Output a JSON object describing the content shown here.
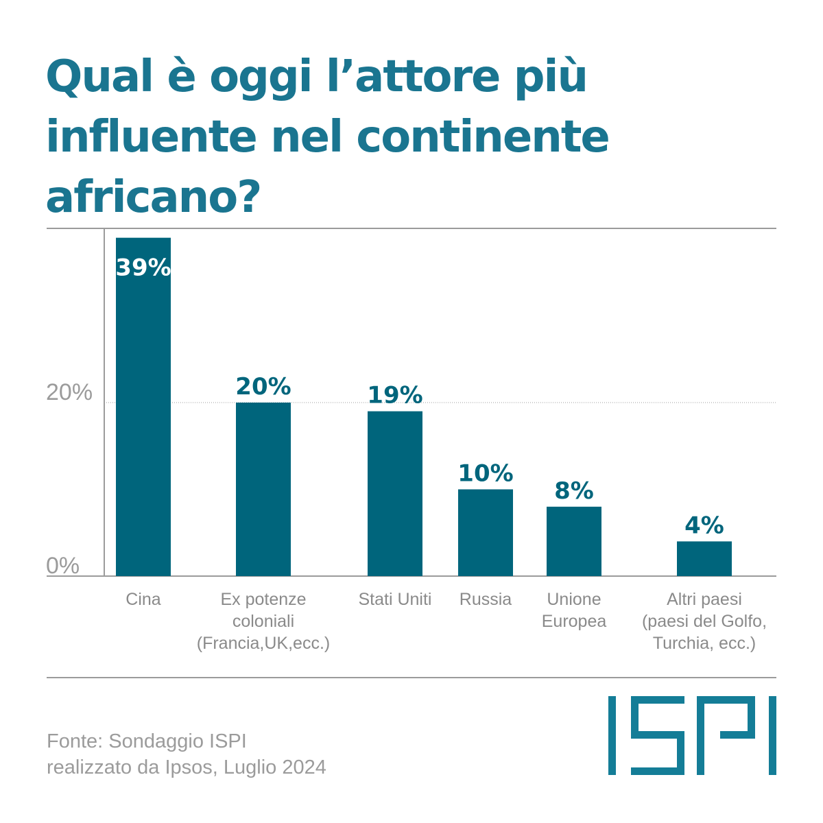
{
  "title_lines": [
    "Qual è oggi l’attore più",
    "influente nel continente",
    "africano?"
  ],
  "chart_data": {
    "type": "bar",
    "title": "Qual è oggi l’attore più influente nel continente africano?",
    "categories": [
      [
        "Cina"
      ],
      [
        "Ex potenze",
        "coloniali",
        "(Francia,UK,ecc.)"
      ],
      [
        "Stati Uniti"
      ],
      [
        "Russia"
      ],
      [
        "Unione",
        "Europea"
      ],
      [
        "Altri paesi",
        "(paesi del Golfo,",
        "Turchia, ecc.)"
      ]
    ],
    "values": [
      39,
      20,
      19,
      10,
      8,
      4
    ],
    "data_labels": [
      "39%",
      "20%",
      "19%",
      "10%",
      "8%",
      "4%"
    ],
    "y_ticks": [
      {
        "value": 0,
        "label": "0%"
      },
      {
        "value": 20,
        "label": "20%"
      }
    ],
    "ylim": [
      0,
      40
    ],
    "grid": "dotted line at 20%",
    "bar_color": "#00657c",
    "axis_color": "#9b9b9b"
  },
  "source_lines": [
    "Fonte: Sondaggio ISPI",
    "realizzato da Ipsos, Luglio 2024"
  ],
  "logo": {
    "text": "ISPI",
    "color": "#147d97"
  }
}
